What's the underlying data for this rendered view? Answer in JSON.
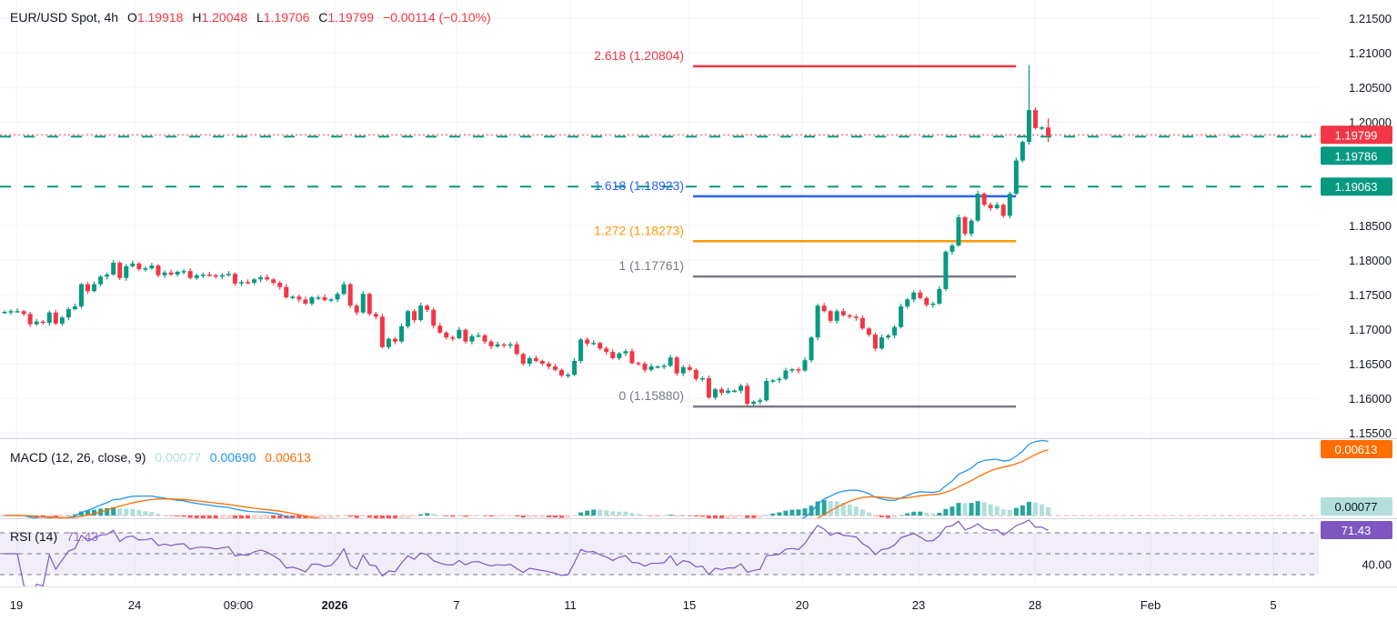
{
  "header": {
    "symbol": "EUR/USD Spot, 4h",
    "o_label": "O",
    "o": "1.19918",
    "h_label": "H",
    "h": "1.20048",
    "l_label": "L",
    "l": "1.19706",
    "c_label": "C",
    "c": "1.19799",
    "change": "−0.00114 (−0.10%)"
  },
  "macd_legend": {
    "title": "MACD (12, 26, close, 9)",
    "histogram": "0.00077",
    "macd": "0.00690",
    "signal": "0.00613"
  },
  "rsi_legend": {
    "title": "RSI (14)",
    "value": "71.43"
  },
  "badges": {
    "last_price": "1.19799",
    "level_1": "1.19786",
    "level_2": "1.19063",
    "signal": "0.00613",
    "histogram": "0.00077",
    "rsi": "71.43",
    "rsi_axis": "40.00"
  },
  "colors": {
    "up": "#089981",
    "down": "#f23645",
    "macd": "#2196f3",
    "signal": "#ff6d00",
    "rsi": "#7e57c2",
    "hist_up_strong": "#26a69a",
    "hist_up_weak": "#b2dfdb",
    "fib_2618": "#f23645",
    "fib_1618": "#2962ff",
    "fib_1272": "#ff9800",
    "fib_1": "#787b86",
    "fib_0": "#787b86",
    "level_line": "#089981"
  },
  "chart_data": {
    "type": "candlestick",
    "title": "EUR/USD Spot, 4h",
    "price_ticks": [
      "1.21500",
      "1.21000",
      "1.20500",
      "1.20000",
      "1.18500",
      "1.18000",
      "1.17500",
      "1.17000",
      "1.16500",
      "1.16000",
      "1.15500"
    ],
    "ylim": [
      1.1535,
      1.2175
    ],
    "time_ticks": [
      "19",
      "24",
      "09:00",
      "2026",
      "7",
      "11",
      "15",
      "20",
      "23",
      "28",
      "Feb",
      "5"
    ],
    "closes": [
      1.1725,
      1.1726,
      1.1726,
      1.1722,
      1.1707,
      1.1711,
      1.1709,
      1.1724,
      1.1708,
      1.1717,
      1.1729,
      1.1733,
      1.1765,
      1.1755,
      1.1765,
      1.1776,
      1.1779,
      1.1796,
      1.1774,
      1.1791,
      1.1795,
      1.1787,
      1.1788,
      1.1792,
      1.1778,
      1.1782,
      1.1779,
      1.1783,
      1.1784,
      1.1774,
      1.1778,
      1.1779,
      1.1778,
      1.1776,
      1.1778,
      1.178,
      1.1766,
      1.1768,
      1.1767,
      1.1772,
      1.1775,
      1.1772,
      1.1767,
      1.1761,
      1.1746,
      1.1747,
      1.1743,
      1.1737,
      1.1746,
      1.1746,
      1.1742,
      1.1743,
      1.1751,
      1.1765,
      1.1734,
      1.1724,
      1.1751,
      1.1722,
      1.1718,
      1.1674,
      1.1686,
      1.1682,
      1.1704,
      1.1726,
      1.1713,
      1.1734,
      1.1728,
      1.1705,
      1.1695,
      1.1688,
      1.1687,
      1.1699,
      1.1682,
      1.169,
      1.1691,
      1.1682,
      1.1675,
      1.1678,
      1.1676,
      1.1678,
      1.1664,
      1.165,
      1.1658,
      1.1654,
      1.165,
      1.1646,
      1.1641,
      1.1633,
      1.1634,
      1.1654,
      1.1685,
      1.1679,
      1.168,
      1.1672,
      1.1667,
      1.1658,
      1.1665,
      1.1668,
      1.1651,
      1.165,
      1.1641,
      1.1646,
      1.1646,
      1.1647,
      1.1659,
      1.1636,
      1.1645,
      1.1641,
      1.1628,
      1.1629,
      1.1601,
      1.1613,
      1.1608,
      1.1611,
      1.1611,
      1.1618,
      1.1592,
      1.1595,
      1.1597,
      1.1625,
      1.1626,
      1.1628,
      1.164,
      1.1642,
      1.164,
      1.1655,
      1.1688,
      1.1734,
      1.1726,
      1.1712,
      1.1726,
      1.172,
      1.1718,
      1.1716,
      1.1701,
      1.1692,
      1.1672,
      1.1688,
      1.1691,
      1.1703,
      1.1733,
      1.1743,
      1.1753,
      1.1745,
      1.1735,
      1.1737,
      1.1758,
      1.1812,
      1.1821,
      1.1862,
      1.1838,
      1.1857,
      1.1896,
      1.188,
      1.1875,
      1.188,
      1.1864,
      1.1896,
      1.1944,
      1.1971,
      1.2017,
      1.1991,
      1.1992,
      1.19799
    ],
    "last_candle": {
      "open": 1.19918,
      "high": 1.20048,
      "low": 1.19706,
      "close": 1.19799
    },
    "extremes": [
      {
        "index": 160,
        "high": 1.2082
      },
      {
        "index": 116,
        "low": 1.1588
      }
    ],
    "fibonacci": [
      {
        "ratio": "2.618",
        "price": 1.20804,
        "label": "2.618 (1.20804)",
        "color_key": "fib_2618"
      },
      {
        "ratio": "1.618",
        "price": 1.18923,
        "label": "1.618 (1.18923)",
        "color_key": "fib_1618"
      },
      {
        "ratio": "1.272",
        "price": 1.18273,
        "label": "1.272 (1.18273)",
        "color_key": "fib_1272"
      },
      {
        "ratio": "1",
        "price": 1.17761,
        "label": "1 (1.17761)",
        "color_key": "fib_1"
      },
      {
        "ratio": "0",
        "price": 1.1588,
        "label": "0 (1.15880)",
        "color_key": "fib_0"
      }
    ],
    "horizontal_levels": [
      1.19786,
      1.19063
    ],
    "last_price": 1.19799,
    "macd": {
      "fast": 12,
      "slow": 26,
      "signal": 9,
      "last_macd": 0.0069,
      "last_signal": 0.00613,
      "last_hist": 0.00077
    },
    "rsi": {
      "period": 14,
      "last": 71.43,
      "bands": [
        70,
        50,
        30
      ],
      "tick": "40.00"
    },
    "grid": true
  }
}
